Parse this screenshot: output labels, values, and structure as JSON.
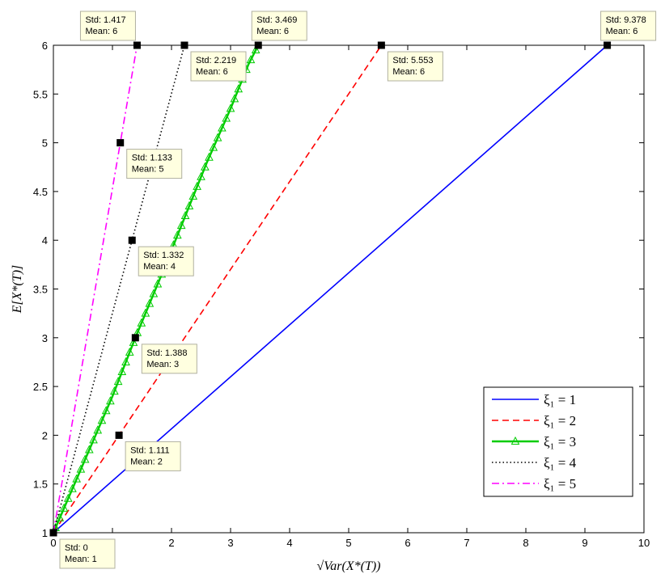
{
  "chart_data": {
    "type": "line",
    "xlabel": "√Var(X*(T))",
    "ylabel": "E[X*(T)]",
    "xlim": [
      0,
      10
    ],
    "ylim": [
      1,
      6
    ],
    "xticks": [
      "0",
      "1",
      "2",
      "3",
      "4",
      "5",
      "6",
      "7",
      "8",
      "9",
      "10"
    ],
    "yticks": [
      "1",
      "1.5",
      "2",
      "2.5",
      "3",
      "3.5",
      "4",
      "4.5",
      "5",
      "5.5",
      "6"
    ],
    "grid": false,
    "legend_position": "bottom-right",
    "series": [
      {
        "name": "ξ₁ = 1",
        "color": "#0000ff",
        "dash": "solid",
        "marker": "none",
        "points": [
          [
            0,
            1
          ],
          [
            9.378,
            6
          ]
        ]
      },
      {
        "name": "ξ₁ = 2",
        "color": "#ff0000",
        "dash": "dashed",
        "marker": "none",
        "points": [
          [
            0,
            1
          ],
          [
            1.111,
            2
          ],
          [
            5.553,
            6
          ]
        ]
      },
      {
        "name": "ξ₁ = 3",
        "color": "#00cc00",
        "dash": "solid",
        "marker": "triangle",
        "points": [
          [
            0,
            1
          ],
          [
            0.5,
            1.7
          ],
          [
            1,
            2.4
          ],
          [
            1.388,
            3
          ],
          [
            1.8,
            3.6
          ],
          [
            2.2,
            4.2
          ],
          [
            2.6,
            4.8
          ],
          [
            3.0,
            5.35
          ],
          [
            3.3,
            5.8
          ],
          [
            3.469,
            6
          ]
        ]
      },
      {
        "name": "ξ₁ = 4",
        "color": "#000000",
        "dash": "dotted",
        "marker": "none",
        "points": [
          [
            0,
            1
          ],
          [
            1.332,
            4
          ],
          [
            2.219,
            6
          ]
        ]
      },
      {
        "name": "ξ₁ = 5",
        "color": "#ff00ff",
        "dash": "dashdot",
        "marker": "none",
        "points": [
          [
            0,
            1
          ],
          [
            1.133,
            5
          ],
          [
            1.417,
            6
          ]
        ]
      }
    ],
    "datatips": [
      {
        "x": 0,
        "y": 1,
        "std": "Std: 0",
        "mean": "Mean: 1",
        "place": "below-right"
      },
      {
        "x": 1.111,
        "y": 2,
        "std": "Std: 1.111",
        "mean": "Mean: 2",
        "place": "below-right"
      },
      {
        "x": 1.388,
        "y": 3,
        "std": "Std: 1.388",
        "mean": "Mean: 3",
        "place": "below-right"
      },
      {
        "x": 1.332,
        "y": 4,
        "std": "Std: 1.332",
        "mean": "Mean: 4",
        "place": "below-right"
      },
      {
        "x": 1.133,
        "y": 5,
        "std": "Std: 1.133",
        "mean": "Mean: 5",
        "place": "below-right"
      },
      {
        "x": 1.417,
        "y": 6,
        "std": "Std: 1.417",
        "mean": "Mean: 6",
        "place": "above-left"
      },
      {
        "x": 2.219,
        "y": 6,
        "std": "Std: 2.219",
        "mean": "Mean: 6",
        "place": "below-right"
      },
      {
        "x": 3.469,
        "y": 6,
        "std": "Std: 3.469",
        "mean": "Mean: 6",
        "place": "above-right"
      },
      {
        "x": 5.553,
        "y": 6,
        "std": "Std: 5.553",
        "mean": "Mean: 6",
        "place": "below-right"
      },
      {
        "x": 9.378,
        "y": 6,
        "std": "Std: 9.378",
        "mean": "Mean: 6",
        "place": "above-right"
      }
    ]
  }
}
